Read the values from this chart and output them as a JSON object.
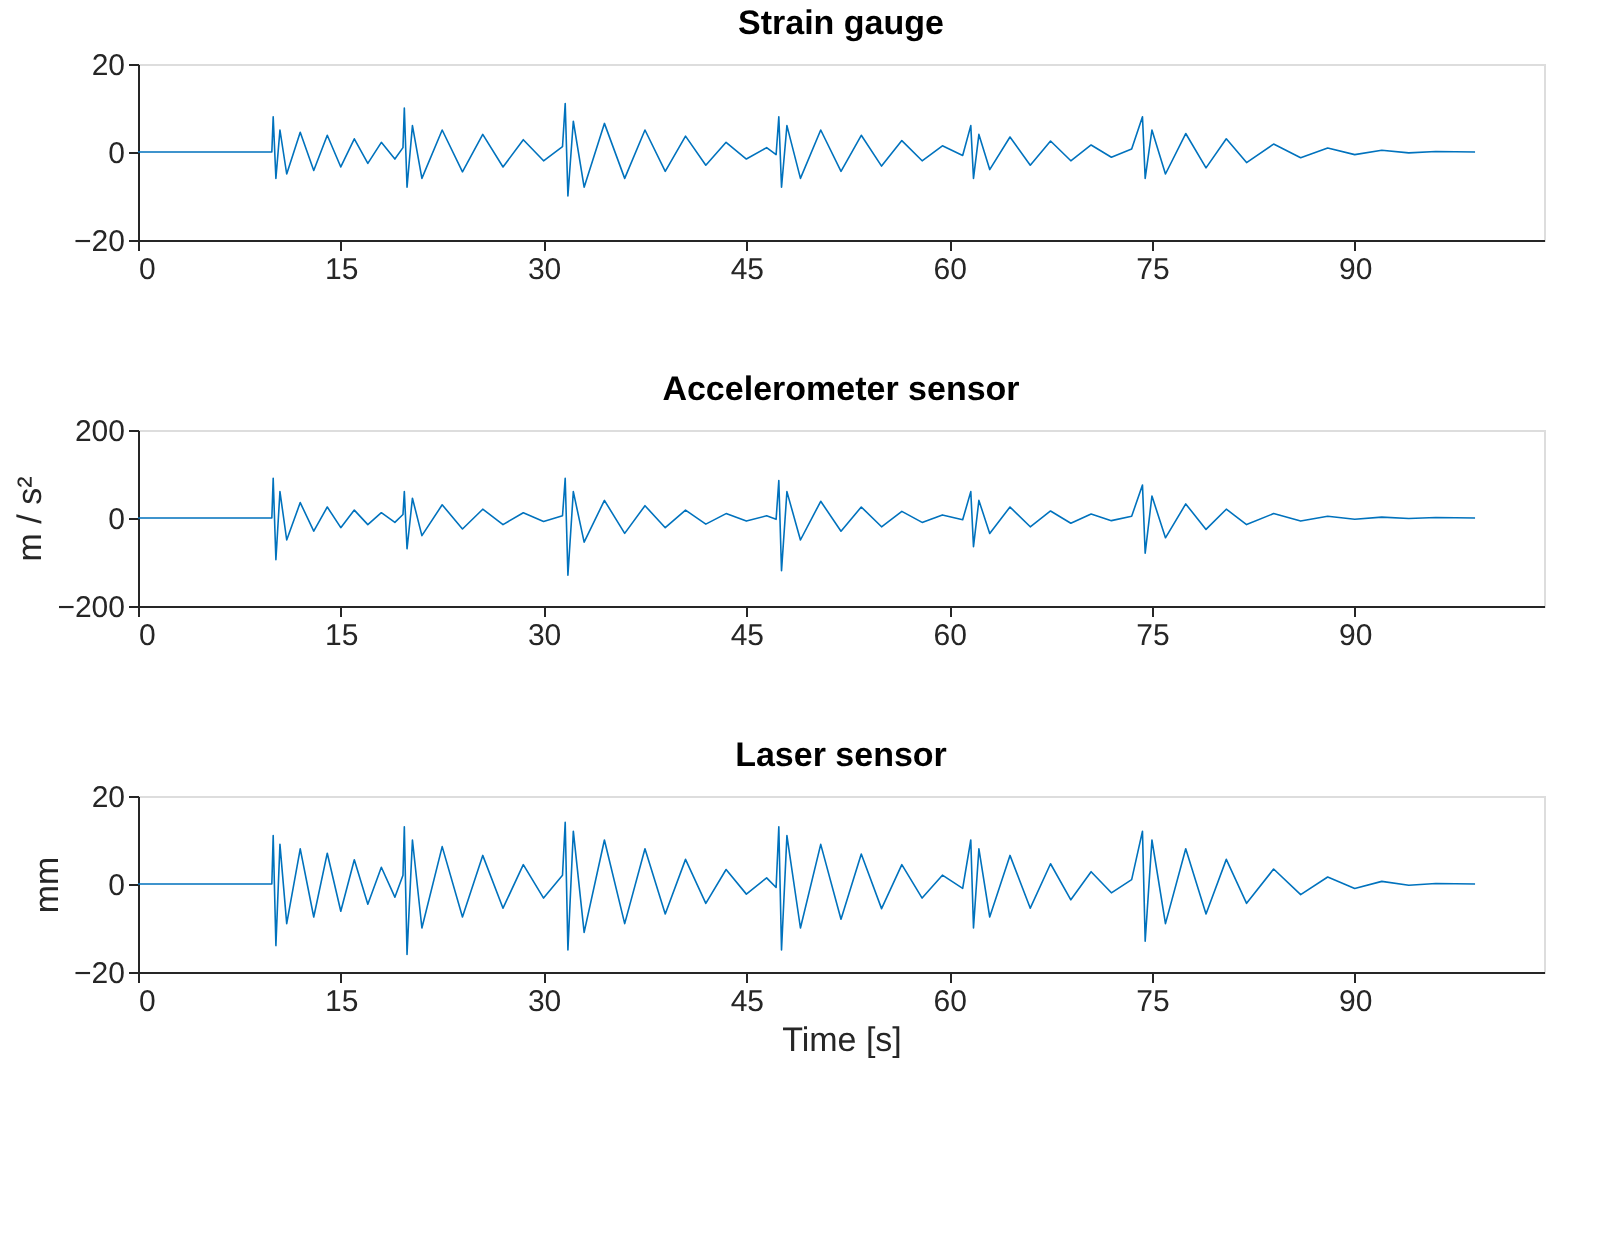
{
  "chart_data": [
    {
      "type": "line",
      "title": "Strain gauge",
      "xlim": [
        0,
        104
      ],
      "xticks": [
        0,
        15,
        30,
        45,
        60,
        75,
        90
      ],
      "ylim": [
        -20,
        20
      ],
      "yticks": [
        -20,
        0,
        20
      ],
      "grid": false,
      "series": [
        {
          "color": "#0072bd",
          "x": [
            0,
            9.9,
            10,
            10.2,
            10.5,
            11,
            12,
            13,
            14,
            15,
            16,
            17,
            18,
            19,
            19.6,
            19.7,
            19.9,
            20.3,
            21,
            22.5,
            24,
            25.5,
            27,
            28.5,
            30,
            31.4,
            31.6,
            31.8,
            32.2,
            33,
            34.5,
            36,
            37.5,
            39,
            40.5,
            42,
            43.5,
            45,
            46.5,
            47.2,
            47.4,
            47.6,
            48,
            49,
            50.5,
            52,
            53.5,
            55,
            56.5,
            58,
            59.5,
            61,
            61.6,
            61.8,
            62.2,
            63,
            64.5,
            66,
            67.5,
            69,
            70.5,
            72,
            73.5,
            74.3,
            74.5,
            75,
            76,
            77.5,
            79,
            80.5,
            82,
            84,
            86,
            88,
            90,
            92,
            94,
            96,
            98.9
          ],
          "values": [
            0,
            0,
            8,
            -6,
            5,
            -5,
            4.5,
            -4.2,
            3.8,
            -3.4,
            3,
            -2.6,
            2.2,
            -1.6,
            1,
            10,
            -8,
            6,
            -6,
            5,
            -4.5,
            4,
            -3.4,
            2.8,
            -2,
            1.2,
            11,
            -10,
            7,
            -8,
            6.5,
            -6,
            5,
            -4.4,
            3.6,
            -3,
            2.2,
            -1.6,
            1,
            -0.6,
            8,
            -8,
            6,
            -6,
            5,
            -4.4,
            3.8,
            -3.2,
            2.6,
            -2,
            1.4,
            -0.8,
            6,
            -6,
            4,
            -4,
            3.4,
            -3,
            2.5,
            -2,
            1.6,
            -1.2,
            0.7,
            8,
            -6,
            5,
            -5,
            4.2,
            -3.6,
            3,
            -2.4,
            1.8,
            -1.3,
            0.9,
            -0.6,
            0.4,
            -0.2,
            0.1,
            0
          ]
        }
      ]
    },
    {
      "type": "line",
      "title": "Accelerometer sensor",
      "ylabel": "m / s²",
      "xlim": [
        0,
        104
      ],
      "xticks": [
        0,
        15,
        30,
        45,
        60,
        75,
        90
      ],
      "ylim": [
        -200,
        200
      ],
      "yticks": [
        -200,
        0,
        200
      ],
      "grid": false,
      "series": [
        {
          "color": "#0072bd",
          "x": [
            0,
            9.9,
            10,
            10.2,
            10.5,
            11,
            12,
            13,
            14,
            15,
            16,
            17,
            18,
            19,
            19.6,
            19.7,
            19.9,
            20.3,
            21,
            22.5,
            24,
            25.5,
            27,
            28.5,
            30,
            31.4,
            31.6,
            31.8,
            32.2,
            33,
            34.5,
            36,
            37.5,
            39,
            40.5,
            42,
            43.5,
            45,
            46.5,
            47.2,
            47.4,
            47.6,
            48,
            49,
            50.5,
            52,
            53.5,
            55,
            56.5,
            58,
            59.5,
            61,
            61.6,
            61.8,
            62.2,
            63,
            64.5,
            66,
            67.5,
            69,
            70.5,
            72,
            73.5,
            74.3,
            74.5,
            75,
            76,
            77.5,
            79,
            80.5,
            82,
            84,
            86,
            88,
            90,
            92,
            94,
            96,
            98.9
          ],
          "values": [
            0,
            0,
            90,
            -95,
            60,
            -50,
            35,
            -30,
            25,
            -22,
            18,
            -15,
            12,
            -10,
            8,
            60,
            -70,
            45,
            -40,
            30,
            -25,
            20,
            -15,
            12,
            -8,
            5,
            90,
            -130,
            60,
            -55,
            40,
            -35,
            28,
            -22,
            18,
            -14,
            10,
            -7,
            5,
            -3,
            85,
            -120,
            60,
            -50,
            38,
            -30,
            25,
            -20,
            15,
            -10,
            7,
            -4,
            60,
            -65,
            40,
            -35,
            25,
            -20,
            16,
            -12,
            9,
            -6,
            4,
            75,
            -80,
            50,
            -45,
            32,
            -26,
            20,
            -15,
            10,
            -7,
            4,
            -3,
            2,
            -1,
            1,
            0
          ]
        }
      ]
    },
    {
      "type": "line",
      "title": "Laser sensor",
      "xlabel": "Time [s]",
      "ylabel": "mm",
      "xlim": [
        0,
        104
      ],
      "xticks": [
        0,
        15,
        30,
        45,
        60,
        75,
        90
      ],
      "ylim": [
        -20,
        20
      ],
      "yticks": [
        -20,
        0,
        20
      ],
      "grid": false,
      "series": [
        {
          "color": "#0072bd",
          "x": [
            0,
            9.9,
            10,
            10.2,
            10.5,
            11,
            12,
            13,
            14,
            15,
            16,
            17,
            18,
            19,
            19.6,
            19.7,
            19.9,
            20.3,
            21,
            22.5,
            24,
            25.5,
            27,
            28.5,
            30,
            31.4,
            31.6,
            31.8,
            32.2,
            33,
            34.5,
            36,
            37.5,
            39,
            40.5,
            42,
            43.5,
            45,
            46.5,
            47.2,
            47.4,
            47.6,
            48,
            49,
            50.5,
            52,
            53.5,
            55,
            56.5,
            58,
            59.5,
            61,
            61.6,
            61.8,
            62.2,
            63,
            64.5,
            66,
            67.5,
            69,
            70.5,
            72,
            73.5,
            74.3,
            74.5,
            75,
            76,
            77.5,
            79,
            80.5,
            82,
            84,
            86,
            88,
            90,
            92,
            94,
            96,
            98.9
          ],
          "values": [
            0,
            0,
            11,
            -14,
            9,
            -9,
            8,
            -7.5,
            7,
            -6.2,
            5.5,
            -4.6,
            3.8,
            -3,
            2,
            13,
            -16,
            10,
            -10,
            8.5,
            -7.5,
            6.5,
            -5.5,
            4.4,
            -3.2,
            2,
            14,
            -15,
            12,
            -11,
            10,
            -9,
            8,
            -6.8,
            5.6,
            -4.4,
            3.3,
            -2.3,
            1.4,
            -0.8,
            13,
            -15,
            11,
            -10,
            9,
            -8,
            6.8,
            -5.6,
            4.4,
            -3.2,
            2,
            -1,
            10,
            -10,
            8,
            -7.5,
            6.5,
            -5.5,
            4.6,
            -3.6,
            2.8,
            -2,
            1,
            12,
            -13,
            10,
            -9,
            8,
            -6.8,
            5.6,
            -4.4,
            3.4,
            -2.4,
            1.6,
            -1,
            0.6,
            -0.3,
            0.1,
            0
          ]
        }
      ]
    }
  ]
}
